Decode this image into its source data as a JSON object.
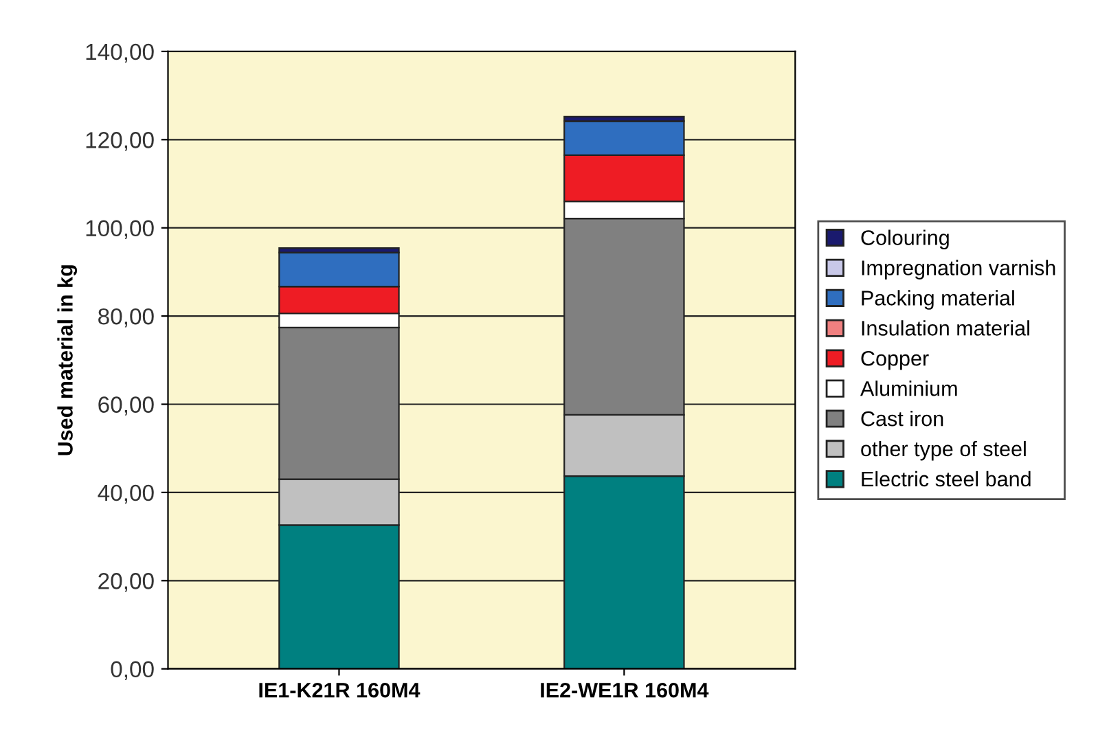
{
  "chart_data": {
    "type": "bar",
    "stacked": true,
    "ylabel": "Used material in kg",
    "categories": [
      "IE1-K21R 160M4",
      "IE2-WE1R 160M4"
    ],
    "series": [
      {
        "name": "Electric steel band",
        "color": "#008080",
        "values": [
          32.6,
          43.7
        ]
      },
      {
        "name": "other type of steel",
        "color": "#c0c0c0",
        "values": [
          10.4,
          13.9
        ]
      },
      {
        "name": "Cast iron",
        "color": "#808080",
        "values": [
          34.4,
          44.5
        ]
      },
      {
        "name": "Aluminium",
        "color": "#ffffff",
        "values": [
          3.2,
          3.9
        ]
      },
      {
        "name": "Copper",
        "color": "#ee1c24",
        "values": [
          6.1,
          10.5
        ]
      },
      {
        "name": "Insulation material",
        "color": "#f08080",
        "values": [
          0,
          0
        ]
      },
      {
        "name": "Packing material",
        "color": "#2f6ebf",
        "values": [
          7.7,
          7.7
        ]
      },
      {
        "name": "Impregnation varnish",
        "color": "#c8c8e8",
        "values": [
          0,
          0
        ]
      },
      {
        "name": "Colouring",
        "color": "#1a1a6e",
        "values": [
          1,
          1
        ]
      }
    ],
    "ylim": [
      0,
      140
    ],
    "yticks": [
      {
        "value": 0,
        "label": "0,00"
      },
      {
        "value": 20,
        "label": "20,00"
      },
      {
        "value": 40,
        "label": "40,00"
      },
      {
        "value": 60,
        "label": "60,00"
      },
      {
        "value": 80,
        "label": "80,00"
      },
      {
        "value": 100,
        "label": "100,00"
      },
      {
        "value": 120,
        "label": "120,00"
      },
      {
        "value": 140,
        "label": "140,00"
      }
    ],
    "grid": "y",
    "legend": "right"
  }
}
